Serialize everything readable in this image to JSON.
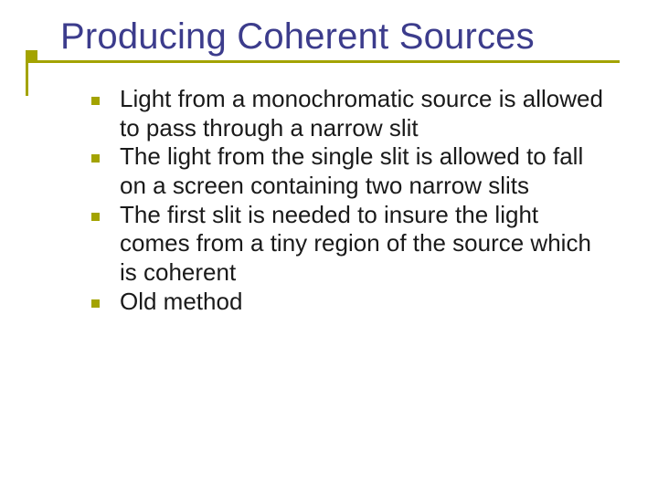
{
  "slide": {
    "title": "Producing Coherent Sources",
    "title_color": "#3c3c8c",
    "accent_color": "#a3a300",
    "background_color": "#ffffff",
    "text_color": "#1a1a1a",
    "title_fontsize": 40,
    "body_fontsize": 26,
    "bullets": [
      {
        "text": "Light from a monochromatic source is allowed to pass through a narrow slit"
      },
      {
        "text": "The light from the single slit is allowed to fall on a screen containing two narrow slits"
      },
      {
        "text": "The first slit is needed to insure the light comes from a tiny region of the source which is coherent"
      },
      {
        "text": "Old method"
      }
    ],
    "bullet_shape": "square",
    "bullet_size": 9
  }
}
